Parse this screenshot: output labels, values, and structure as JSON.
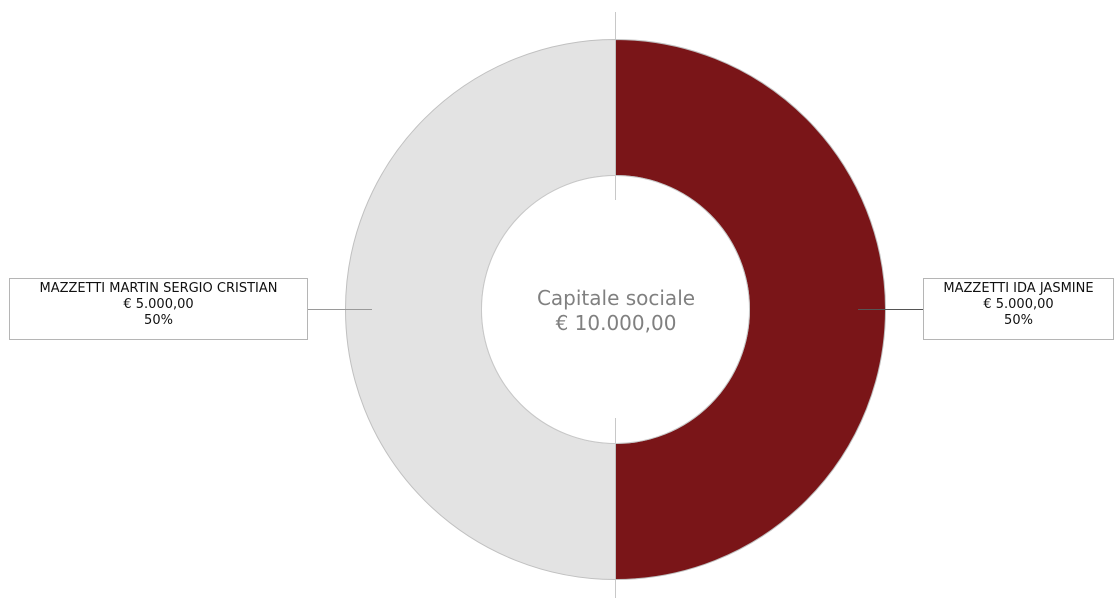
{
  "chart_data": {
    "type": "pie",
    "donut": true,
    "center": {
      "title": "Capitale sociale",
      "value": "€ 10.000,00"
    },
    "slices": [
      {
        "name": "MAZZETTI IDA JASMINE",
        "amount_label": "€ 5.000,00",
        "value": 5000,
        "percent_label": "50%",
        "color": "#7a1518"
      },
      {
        "name": "MAZZETTI MARTIN SERGIO CRISTIAN",
        "amount_label": "€ 5.000,00",
        "value": 5000,
        "percent_label": "50%",
        "color": "#e3e3e3"
      }
    ]
  }
}
